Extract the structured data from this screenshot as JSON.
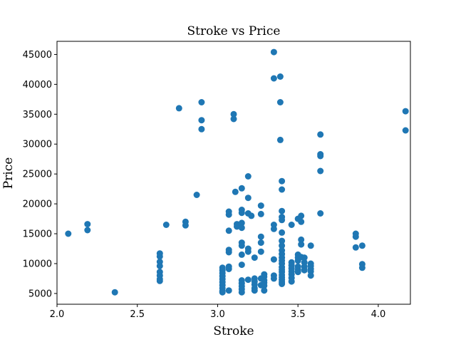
{
  "chart_data": {
    "type": "scatter",
    "title": "Stroke vs Price",
    "xlabel": "Stroke",
    "ylabel": "Price",
    "xlim": [
      2.0,
      4.2
    ],
    "ylim": [
      3200,
      47200
    ],
    "xticks": [
      "2.0",
      "2.5",
      "3.0",
      "3.5",
      "4.0"
    ],
    "xtick_values": [
      2.0,
      2.5,
      3.0,
      3.5,
      4.0
    ],
    "yticks": [
      "5000",
      "10000",
      "15000",
      "20000",
      "25000",
      "30000",
      "35000",
      "40000",
      "45000"
    ],
    "ytick_values": [
      5000,
      10000,
      15000,
      20000,
      25000,
      30000,
      35000,
      40000,
      45000
    ],
    "grid": false,
    "marker_color": "#1f77b4",
    "points": [
      [
        2.07,
        15000
      ],
      [
        2.19,
        16600
      ],
      [
        2.19,
        15600
      ],
      [
        2.36,
        5200
      ],
      [
        2.64,
        11700
      ],
      [
        2.64,
        11200
      ],
      [
        2.64,
        10300
      ],
      [
        2.64,
        9600
      ],
      [
        2.64,
        8600
      ],
      [
        2.64,
        8000
      ],
      [
        2.64,
        7400
      ],
      [
        2.64,
        7100
      ],
      [
        2.68,
        16500
      ],
      [
        2.76,
        36000
      ],
      [
        2.8,
        17000
      ],
      [
        2.8,
        16400
      ],
      [
        2.87,
        21500
      ],
      [
        2.9,
        37000
      ],
      [
        2.9,
        34000
      ],
      [
        2.9,
        32500
      ],
      [
        3.03,
        9300
      ],
      [
        3.03,
        8900
      ],
      [
        3.03,
        8400
      ],
      [
        3.03,
        7900
      ],
      [
        3.03,
        7400
      ],
      [
        3.03,
        6900
      ],
      [
        3.03,
        6400
      ],
      [
        3.03,
        5900
      ],
      [
        3.03,
        5400
      ],
      [
        3.03,
        5200
      ],
      [
        3.07,
        18700
      ],
      [
        3.07,
        18200
      ],
      [
        3.07,
        15500
      ],
      [
        3.07,
        12300
      ],
      [
        3.07,
        11900
      ],
      [
        3.07,
        9500
      ],
      [
        3.07,
        9100
      ],
      [
        3.07,
        5500
      ],
      [
        3.1,
        35000
      ],
      [
        3.1,
        34200
      ],
      [
        3.11,
        22000
      ],
      [
        3.12,
        16600
      ],
      [
        3.12,
        16200
      ],
      [
        3.15,
        22600
      ],
      [
        3.15,
        19000
      ],
      [
        3.15,
        18500
      ],
      [
        3.15,
        16800
      ],
      [
        3.15,
        16000
      ],
      [
        3.15,
        13500
      ],
      [
        3.15,
        13000
      ],
      [
        3.15,
        11500
      ],
      [
        3.15,
        9800
      ],
      [
        3.15,
        7200
      ],
      [
        3.15,
        6700
      ],
      [
        3.15,
        6200
      ],
      [
        3.15,
        5700
      ],
      [
        3.15,
        5200
      ],
      [
        3.19,
        24600
      ],
      [
        3.19,
        21000
      ],
      [
        3.19,
        18400
      ],
      [
        3.19,
        12500
      ],
      [
        3.19,
        12000
      ],
      [
        3.19,
        7300
      ],
      [
        3.21,
        18000
      ],
      [
        3.23,
        11000
      ],
      [
        3.23,
        7500
      ],
      [
        3.23,
        7000
      ],
      [
        3.23,
        6500
      ],
      [
        3.23,
        5900
      ],
      [
        3.23,
        5500
      ],
      [
        3.27,
        19700
      ],
      [
        3.27,
        18300
      ],
      [
        3.27,
        14500
      ],
      [
        3.27,
        13500
      ],
      [
        3.27,
        12000
      ],
      [
        3.27,
        7500
      ],
      [
        3.27,
        6400
      ],
      [
        3.29,
        8200
      ],
      [
        3.29,
        7800
      ],
      [
        3.29,
        7200
      ],
      [
        3.29,
        6800
      ],
      [
        3.29,
        6300
      ],
      [
        3.29,
        5500
      ],
      [
        3.35,
        45400
      ],
      [
        3.35,
        41000
      ],
      [
        3.35,
        16500
      ],
      [
        3.35,
        15800
      ],
      [
        3.35,
        10700
      ],
      [
        3.35,
        8000
      ],
      [
        3.35,
        7500
      ],
      [
        3.39,
        41300
      ],
      [
        3.39,
        37000
      ],
      [
        3.39,
        30700
      ],
      [
        3.4,
        23800
      ],
      [
        3.4,
        22400
      ],
      [
        3.4,
        18800
      ],
      [
        3.4,
        17800
      ],
      [
        3.4,
        17300
      ],
      [
        3.4,
        15200
      ],
      [
        3.4,
        13800
      ],
      [
        3.4,
        13000
      ],
      [
        3.4,
        12200
      ],
      [
        3.4,
        11600
      ],
      [
        3.4,
        11000
      ],
      [
        3.4,
        10500
      ],
      [
        3.4,
        10000
      ],
      [
        3.4,
        9400
      ],
      [
        3.4,
        9000
      ],
      [
        3.4,
        8600
      ],
      [
        3.4,
        8100
      ],
      [
        3.4,
        7700
      ],
      [
        3.4,
        7300
      ],
      [
        3.4,
        6900
      ],
      [
        3.4,
        6600
      ],
      [
        3.46,
        16500
      ],
      [
        3.46,
        10200
      ],
      [
        3.46,
        9700
      ],
      [
        3.46,
        9200
      ],
      [
        3.46,
        8700
      ],
      [
        3.46,
        8200
      ],
      [
        3.46,
        7600
      ],
      [
        3.46,
        7000
      ],
      [
        3.5,
        17500
      ],
      [
        3.5,
        11500
      ],
      [
        3.5,
        11000
      ],
      [
        3.5,
        10500
      ],
      [
        3.5,
        9500
      ],
      [
        3.5,
        9000
      ],
      [
        3.5,
        8600
      ],
      [
        3.52,
        18000
      ],
      [
        3.52,
        17000
      ],
      [
        3.52,
        14000
      ],
      [
        3.52,
        13200
      ],
      [
        3.52,
        11100
      ],
      [
        3.54,
        11000
      ],
      [
        3.54,
        10200
      ],
      [
        3.54,
        9500
      ],
      [
        3.54,
        8900
      ],
      [
        3.58,
        13000
      ],
      [
        3.58,
        10000
      ],
      [
        3.58,
        9600
      ],
      [
        3.58,
        9100
      ],
      [
        3.58,
        8700
      ],
      [
        3.58,
        8000
      ],
      [
        3.64,
        31600
      ],
      [
        3.64,
        28300
      ],
      [
        3.64,
        28000
      ],
      [
        3.64,
        25500
      ],
      [
        3.64,
        18400
      ],
      [
        3.86,
        15000
      ],
      [
        3.86,
        14500
      ],
      [
        3.86,
        12700
      ],
      [
        3.9,
        13000
      ],
      [
        3.9,
        9900
      ],
      [
        3.9,
        9300
      ],
      [
        4.17,
        35500
      ],
      [
        4.17,
        32300
      ]
    ]
  }
}
